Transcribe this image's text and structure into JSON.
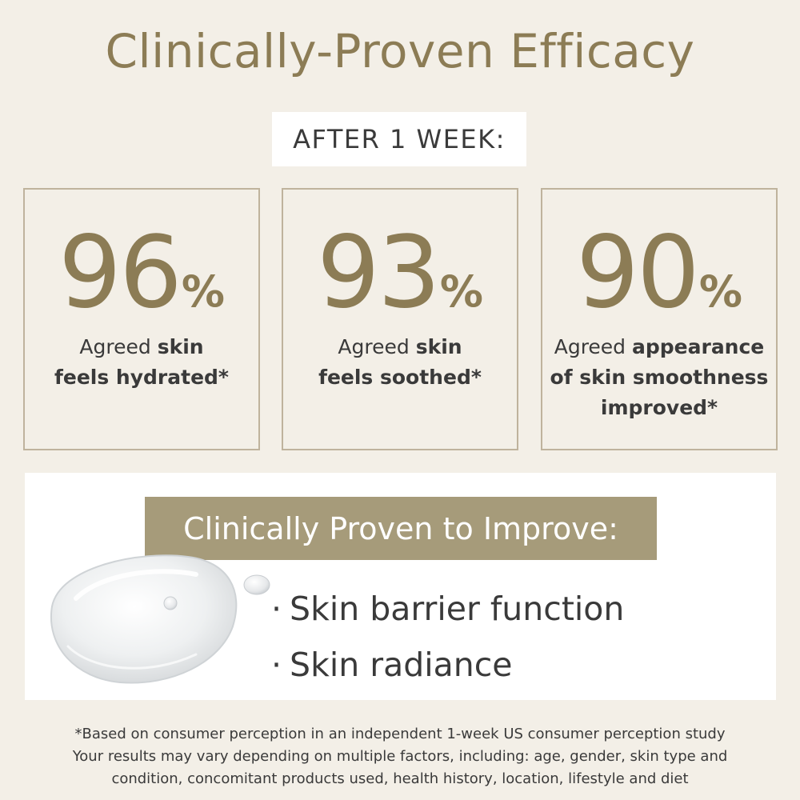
{
  "colors": {
    "background": "#f3efe7",
    "accent": "#8c7c55",
    "banner": "#a69b7a",
    "card_border": "#bfb39d",
    "text": "#3a3a3a"
  },
  "header": {
    "title": "Clinically-Proven Efficacy",
    "subtitle": "AFTER 1 WEEK:"
  },
  "stats": [
    {
      "value": "96",
      "unit": "%",
      "percent": 96,
      "desc_regular": "Agreed ",
      "desc_bold_1": "skin",
      "desc_bold_2": "feels hydrated*",
      "desc_bold_3": ""
    },
    {
      "value": "93",
      "unit": "%",
      "percent": 93,
      "desc_regular": "Agreed ",
      "desc_bold_1": "skin",
      "desc_bold_2": "feels soothed*",
      "desc_bold_3": ""
    },
    {
      "value": "90",
      "unit": "%",
      "percent": 90,
      "desc_regular": "Agreed ",
      "desc_bold_1": "appearance",
      "desc_bold_2": "of skin smoothness",
      "desc_bold_3": "improved*"
    }
  ],
  "improve": {
    "banner": "Clinically Proven to Improve:",
    "bullet": "·",
    "items": [
      "Skin barrier function",
      "Skin radiance"
    ],
    "image_icon": "gel-droplet-icon"
  },
  "disclaimer": {
    "lines": [
      "*Based on consumer perception in an independent 1-week US consumer perception study",
      "Your results may vary depending on multiple factors, including: age, gender, skin type and",
      "condition, concomitant products used, health history, location, lifestyle and diet"
    ]
  }
}
